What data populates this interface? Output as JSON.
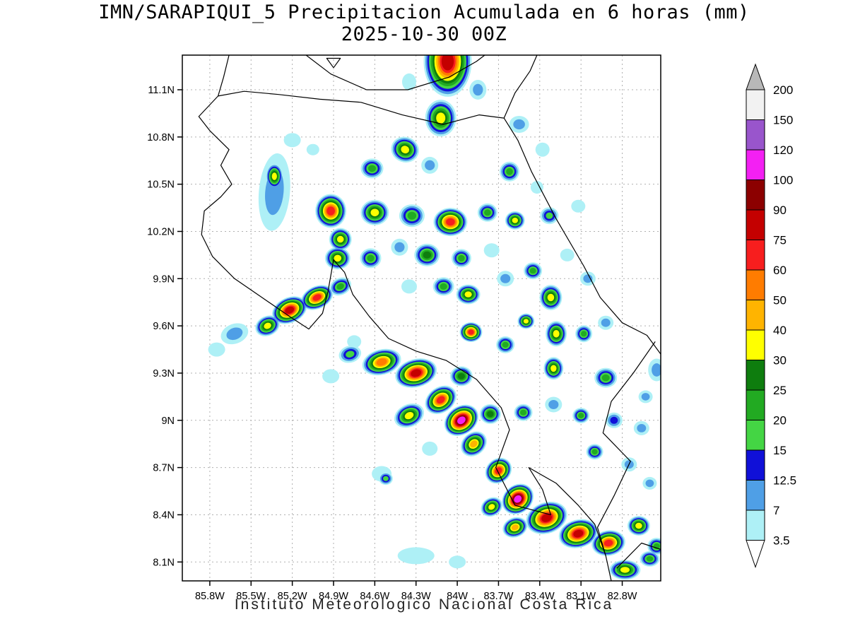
{
  "title": {
    "line1": "IMN/SARAPIQUI_5 Precipitacion Acumulada en 6 horas (mm)",
    "line2": "2025-10-30 00Z"
  },
  "footer": {
    "text": "Instituto Meteorologico Nacional Costa Rica"
  },
  "legend": {
    "boundary_labels": [
      "200",
      "150",
      "120",
      "100",
      "90",
      "75",
      "60",
      "50",
      "40",
      "30",
      "25",
      "20",
      "15",
      "12.5",
      "7",
      "3.5"
    ],
    "segment_colors": [
      "#f2f2f2",
      "#9955cc",
      "#f320f3",
      "#8c0000",
      "#c40000",
      "#f71e1e",
      "#ff7c00",
      "#ffb400",
      "#ffff00",
      "#0e7d0e",
      "#22aa22",
      "#44d544",
      "#1010d8",
      "#4f9fe6",
      "#aef0f6"
    ],
    "over_color": "#b8b8b8",
    "under_color": "#ffffff",
    "cell_level_colors": [
      "#aef0f6",
      "#4f9fe6",
      "#1010d8",
      "#44d544",
      "#22aa22",
      "#0e7d0e",
      "#ffff00",
      "#ffb400",
      "#ff7c00",
      "#f71e1e",
      "#c40000",
      "#8c0000",
      "#f320f3",
      "#9955cc"
    ]
  },
  "map": {
    "bounds": {
      "lon_west": 86.0,
      "lon_east": 82.52,
      "lat_north": 11.32,
      "lat_south": 7.98
    },
    "grid_lats": [
      11.1,
      10.8,
      10.5,
      10.2,
      9.9,
      9.6,
      9.3,
      9.0,
      8.7,
      8.4,
      8.1
    ],
    "lat_labels": [
      "11.1N",
      "10.8N",
      "10.5N",
      "10.2N",
      "9.9N",
      "9.6N",
      "9.3N",
      "9N",
      "8.7N",
      "8.4N",
      "8.1N"
    ],
    "grid_lons": [
      85.8,
      85.5,
      85.2,
      84.9,
      84.6,
      84.3,
      84.0,
      83.7,
      83.4,
      83.1,
      82.8
    ],
    "lon_labels": [
      "85.8W",
      "85.5W",
      "85.2W",
      "84.9W",
      "84.6W",
      "84.3W",
      "84W",
      "83.7W",
      "83.4W",
      "83.1W",
      "82.8W"
    ],
    "coastlines": [
      [
        [
          85.66,
          11.32
        ],
        [
          85.7,
          11.18
        ],
        [
          85.74,
          11.06
        ],
        [
          85.88,
          10.93
        ],
        [
          85.8,
          10.84
        ],
        [
          85.66,
          10.72
        ],
        [
          85.72,
          10.62
        ],
        [
          85.64,
          10.5
        ],
        [
          85.72,
          10.42
        ],
        [
          85.84,
          10.33
        ],
        [
          85.86,
          10.18
        ],
        [
          85.78,
          10.04
        ],
        [
          85.62,
          9.9
        ],
        [
          85.42,
          9.78
        ],
        [
          85.22,
          9.66
        ],
        [
          85.08,
          9.58
        ],
        [
          84.98,
          9.68
        ],
        [
          84.94,
          9.82
        ],
        [
          84.9,
          10.02
        ],
        [
          84.82,
          9.94
        ],
        [
          84.76,
          9.8
        ],
        [
          84.64,
          9.66
        ],
        [
          84.5,
          9.52
        ],
        [
          84.3,
          9.44
        ],
        [
          84.08,
          9.38
        ],
        [
          83.86,
          9.26
        ],
        [
          83.68,
          9.08
        ],
        [
          83.62,
          8.94
        ],
        [
          83.72,
          8.7
        ],
        [
          83.58,
          8.46
        ],
        [
          83.32,
          8.4
        ],
        [
          83.38,
          8.56
        ],
        [
          83.48,
          8.7
        ],
        [
          83.28,
          8.6
        ],
        [
          83.12,
          8.46
        ],
        [
          83.0,
          8.34
        ],
        [
          82.92,
          8.14
        ],
        [
          82.88,
          7.98
        ]
      ],
      [
        [
          82.52,
          9.42
        ],
        [
          82.62,
          9.54
        ],
        [
          82.8,
          9.62
        ],
        [
          82.96,
          9.78
        ],
        [
          83.08,
          9.98
        ],
        [
          83.28,
          10.28
        ],
        [
          83.46,
          10.58
        ],
        [
          83.56,
          10.78
        ],
        [
          83.66,
          10.92
        ],
        [
          83.84,
          10.94
        ],
        [
          84.1,
          10.88
        ],
        [
          84.4,
          10.94
        ],
        [
          84.7,
          11.02
        ],
        [
          85.0,
          11.04
        ],
        [
          85.3,
          11.07
        ],
        [
          85.55,
          11.09
        ],
        [
          85.74,
          11.06
        ]
      ],
      [
        [
          83.66,
          10.92
        ],
        [
          83.58,
          11.08
        ],
        [
          83.47,
          11.22
        ],
        [
          83.42,
          11.32
        ]
      ],
      [
        [
          85.1,
          11.32
        ],
        [
          84.92,
          11.2
        ],
        [
          84.66,
          11.1
        ],
        [
          84.36,
          11.1
        ],
        [
          84.06,
          11.18
        ],
        [
          83.86,
          11.28
        ],
        [
          83.8,
          11.32
        ]
      ],
      [
        [
          84.9,
          11.24
        ],
        [
          84.85,
          11.3
        ],
        [
          84.95,
          11.3
        ],
        [
          84.9,
          11.24
        ]
      ],
      [
        [
          82.56,
          9.5
        ],
        [
          82.72,
          9.3
        ],
        [
          82.88,
          9.12
        ],
        [
          82.94,
          8.92
        ],
        [
          82.74,
          8.74
        ],
        [
          82.86,
          8.52
        ],
        [
          82.98,
          8.32
        ],
        [
          82.92,
          8.14
        ]
      ],
      [
        [
          82.84,
          8.06
        ],
        [
          82.66,
          8.22
        ],
        [
          82.52,
          8.18
        ]
      ]
    ],
    "cells": [
      [
        84.07,
        11.28,
        11,
        34,
        50,
        0
      ],
      [
        84.12,
        10.92,
        7,
        22,
        26,
        0
      ],
      [
        83.85,
        11.1,
        2,
        12,
        14,
        0
      ],
      [
        84.35,
        11.15,
        1,
        10,
        12,
        0
      ],
      [
        83.55,
        10.88,
        2,
        14,
        12,
        0
      ],
      [
        83.38,
        10.72,
        1,
        10,
        10,
        0
      ],
      [
        83.62,
        10.58,
        5,
        14,
        14,
        0
      ],
      [
        83.42,
        10.48,
        1,
        9,
        9,
        0
      ],
      [
        84.38,
        10.72,
        7,
        20,
        18,
        20
      ],
      [
        84.62,
        10.6,
        5,
        16,
        14,
        0
      ],
      [
        84.2,
        10.62,
        2,
        12,
        12,
        0
      ],
      [
        85.33,
        10.45,
        2,
        22,
        55,
        5
      ],
      [
        85.33,
        10.55,
        7,
        12,
        18,
        0
      ],
      [
        85.2,
        10.78,
        1,
        12,
        10,
        0
      ],
      [
        85.05,
        10.72,
        1,
        9,
        8,
        0
      ],
      [
        84.92,
        10.33,
        10,
        22,
        24,
        0
      ],
      [
        84.85,
        10.15,
        7,
        16,
        16,
        0
      ],
      [
        84.6,
        10.32,
        7,
        20,
        18,
        0
      ],
      [
        84.33,
        10.3,
        5,
        18,
        16,
        0
      ],
      [
        84.05,
        10.26,
        10,
        24,
        20,
        0
      ],
      [
        83.78,
        10.32,
        5,
        14,
        13,
        0
      ],
      [
        83.58,
        10.27,
        7,
        14,
        13,
        0
      ],
      [
        83.33,
        10.3,
        4,
        13,
        12,
        0
      ],
      [
        83.12,
        10.36,
        1,
        10,
        9,
        0
      ],
      [
        84.87,
        10.03,
        7,
        18,
        16,
        0
      ],
      [
        84.63,
        10.03,
        5,
        15,
        14,
        0
      ],
      [
        84.42,
        10.1,
        2,
        12,
        12,
        0
      ],
      [
        84.22,
        10.05,
        6,
        18,
        16,
        0
      ],
      [
        83.97,
        10.03,
        5,
        14,
        13,
        0
      ],
      [
        83.75,
        10.08,
        1,
        11,
        10,
        0
      ],
      [
        83.2,
        10.05,
        1,
        10,
        9,
        0
      ],
      [
        85.62,
        9.55,
        2,
        20,
        14,
        -20
      ],
      [
        85.75,
        9.45,
        1,
        12,
        10,
        0
      ],
      [
        85.38,
        9.6,
        7,
        18,
        14,
        -25
      ],
      [
        85.22,
        9.7,
        11,
        26,
        18,
        -25
      ],
      [
        85.02,
        9.78,
        10,
        24,
        16,
        -25
      ],
      [
        84.85,
        9.85,
        5,
        16,
        12,
        -25
      ],
      [
        84.35,
        9.85,
        1,
        11,
        10,
        0
      ],
      [
        84.1,
        9.85,
        5,
        15,
        13,
        0
      ],
      [
        83.92,
        9.8,
        7,
        17,
        14,
        0
      ],
      [
        83.65,
        9.9,
        2,
        12,
        11,
        0
      ],
      [
        83.45,
        9.95,
        5,
        13,
        12,
        0
      ],
      [
        83.32,
        9.78,
        7,
        16,
        18,
        0
      ],
      [
        83.28,
        9.55,
        7,
        15,
        18,
        0
      ],
      [
        83.3,
        9.33,
        7,
        14,
        16,
        0
      ],
      [
        83.05,
        9.9,
        2,
        11,
        10,
        0
      ],
      [
        83.08,
        9.55,
        5,
        12,
        12,
        0
      ],
      [
        82.92,
        9.62,
        2,
        11,
        10,
        0
      ],
      [
        83.9,
        9.56,
        10,
        16,
        14,
        0
      ],
      [
        83.65,
        9.48,
        5,
        13,
        12,
        0
      ],
      [
        83.5,
        9.63,
        7,
        12,
        11,
        0
      ],
      [
        84.75,
        9.5,
        1,
        10,
        9,
        0
      ],
      [
        84.55,
        9.37,
        9,
        28,
        18,
        -15
      ],
      [
        84.3,
        9.3,
        11,
        30,
        20,
        -15
      ],
      [
        84.78,
        9.42,
        4,
        16,
        12,
        -15
      ],
      [
        84.92,
        9.28,
        1,
        12,
        10,
        0
      ],
      [
        83.97,
        9.28,
        6,
        16,
        14,
        0
      ],
      [
        84.12,
        9.13,
        10,
        24,
        18,
        -35
      ],
      [
        83.97,
        9.0,
        13,
        26,
        20,
        -35
      ],
      [
        84.35,
        9.03,
        7,
        22,
        16,
        -25
      ],
      [
        83.76,
        9.04,
        6,
        15,
        14,
        0
      ],
      [
        83.52,
        9.05,
        5,
        13,
        12,
        0
      ],
      [
        83.3,
        9.1,
        2,
        12,
        11,
        0
      ],
      [
        83.1,
        9.03,
        5,
        12,
        11,
        0
      ],
      [
        82.86,
        9.0,
        3,
        12,
        11,
        0
      ],
      [
        82.66,
        8.95,
        2,
        11,
        10,
        0
      ],
      [
        82.92,
        9.27,
        5,
        16,
        14,
        0
      ],
      [
        82.63,
        9.15,
        2,
        10,
        9,
        0
      ],
      [
        82.55,
        9.32,
        2,
        12,
        16,
        0
      ],
      [
        83.88,
        8.85,
        8,
        20,
        16,
        -40
      ],
      [
        83.7,
        8.68,
        10,
        20,
        17,
        -40
      ],
      [
        83.56,
        8.5,
        13,
        24,
        20,
        -40
      ],
      [
        84.2,
        8.82,
        1,
        11,
        10,
        0
      ],
      [
        84.52,
        8.63,
        4,
        10,
        9,
        0
      ],
      [
        84.55,
        8.66,
        1,
        14,
        11,
        0
      ],
      [
        83.0,
        8.8,
        5,
        12,
        11,
        0
      ],
      [
        82.75,
        8.72,
        2,
        11,
        10,
        0
      ],
      [
        82.6,
        8.6,
        2,
        10,
        9,
        0
      ],
      [
        83.35,
        8.38,
        11,
        30,
        22,
        -20
      ],
      [
        83.12,
        8.28,
        11,
        28,
        20,
        -15
      ],
      [
        82.9,
        8.22,
        10,
        24,
        18,
        -10
      ],
      [
        83.58,
        8.32,
        8,
        18,
        14,
        -20
      ],
      [
        83.75,
        8.45,
        7,
        16,
        13,
        -30
      ],
      [
        82.68,
        8.33,
        7,
        16,
        14,
        0
      ],
      [
        82.55,
        8.2,
        5,
        13,
        12,
        0
      ],
      [
        84.3,
        8.14,
        1,
        26,
        12,
        0
      ],
      [
        84.0,
        8.1,
        1,
        12,
        9,
        0
      ],
      [
        82.78,
        8.05,
        7,
        22,
        14,
        0
      ],
      [
        82.6,
        8.12,
        5,
        14,
        11,
        0
      ]
    ]
  }
}
